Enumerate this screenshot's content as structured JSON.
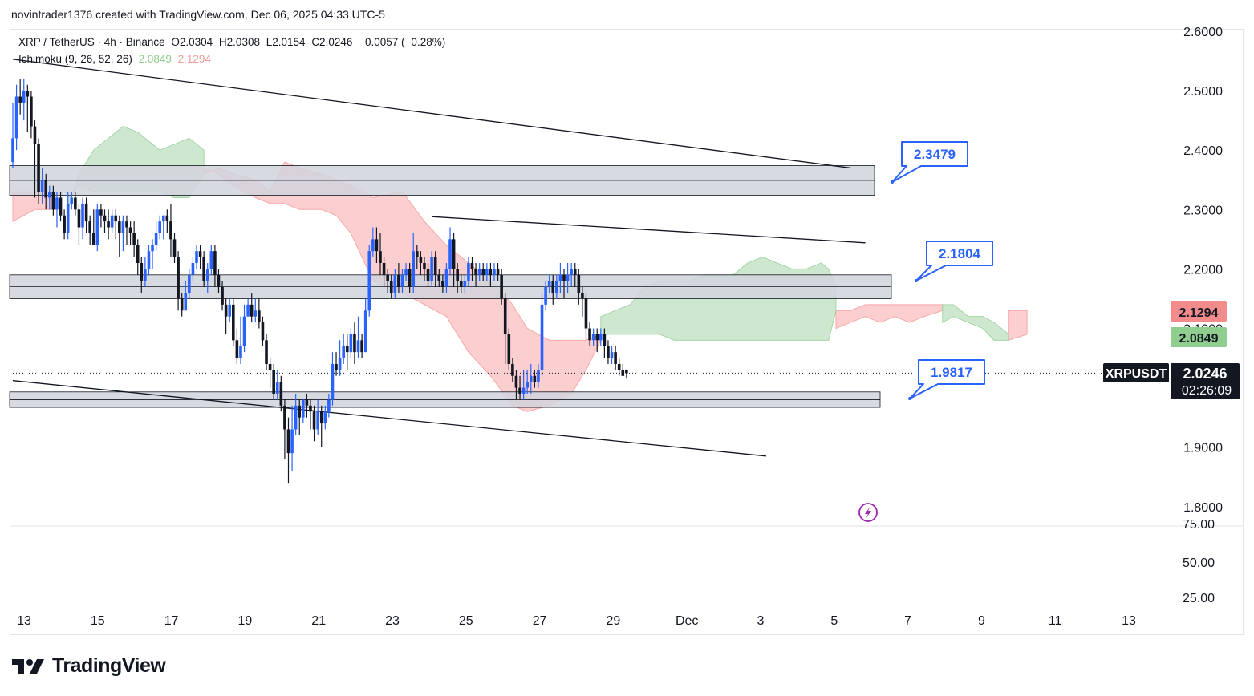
{
  "header": {
    "attribution": "novintrader1376 created with TradingView.com, Dec 06, 2025 04:33 UTC-5"
  },
  "legend": {
    "symbol": "XRP / TetherUS · 4h · Binance",
    "open": "O2.0304",
    "high": "H2.0308",
    "low": "L2.0154",
    "close": "C2.0246",
    "change": "−0.0057 (−0.28%)",
    "indicator": "Ichimoku (9, 26, 52, 26)",
    "indicator_v1": "2.0849",
    "indicator_v2": "2.1294"
  },
  "colors": {
    "up": "#2962ff",
    "down": "#131722",
    "cloud_green": "#a5d6a7",
    "cloud_red": "#f7a8a8",
    "zone": "#d1d4dc",
    "callout": "#2962ff",
    "badge_red": "#f28b8b",
    "badge_green": "#8fce8f"
  },
  "icons": {
    "replay": "lightning-icon",
    "logo": "tradingview-logo-icon"
  },
  "chart_data": {
    "type": "candlestick",
    "symbol": "XRPUSDT",
    "timeframe": "4h",
    "ylim": [
      1.75,
      2.61
    ],
    "y_ticks": [
      "2.6000",
      "2.5000",
      "2.4000",
      "2.3000",
      "2.2000",
      "2.1000",
      "1.9000",
      "1.8000"
    ],
    "x_ticks": [
      "13",
      "15",
      "17",
      "19",
      "21",
      "23",
      "25",
      "27",
      "29",
      "Dec",
      "3",
      "5",
      "7",
      "9",
      "11",
      "13"
    ],
    "lower_pane_ticks": [
      "75.00",
      "50.00",
      "25.00"
    ],
    "last_price": "2.0246",
    "countdown": "02:26:09",
    "symbol_label": "XRPUSDT",
    "ichimoku_badges": [
      "2.1294",
      "2.0849"
    ],
    "price_callouts": [
      "2.3479",
      "2.1804",
      "1.9817"
    ],
    "zones": [
      {
        "name": "resistance-zone-upper",
        "from": 2.324,
        "to": 2.374
      },
      {
        "name": "resistance-zone-middle",
        "from": 2.15,
        "to": 2.19
      },
      {
        "name": "support-zone",
        "from": 1.967,
        "to": 1.993
      }
    ],
    "trendlines": [
      {
        "name": "upper-descending-trendline",
        "from": [
          0,
          2.553
        ],
        "to": [
          228,
          2.37
        ]
      },
      {
        "name": "range-top-trendline",
        "from": [
          114,
          2.288
        ],
        "to": [
          232,
          2.244
        ]
      },
      {
        "name": "lower-descending-trendline",
        "from": [
          0,
          2.012
        ],
        "to": [
          205,
          1.885
        ]
      }
    ],
    "cloud_green": [
      [
        15,
        2.3,
        2.32
      ],
      [
        18,
        2.36,
        2.34
      ],
      [
        22,
        2.4,
        2.33
      ],
      [
        26,
        2.42,
        2.33
      ],
      [
        30,
        2.44,
        2.33
      ],
      [
        34,
        2.43,
        2.33
      ],
      [
        38,
        2.41,
        2.33
      ],
      [
        40,
        2.4,
        2.33
      ],
      [
        44,
        2.41,
        2.32
      ],
      [
        48,
        2.42,
        2.32
      ],
      [
        52,
        2.4,
        2.36
      ],
      [
        160,
        2.12,
        2.09
      ],
      [
        164,
        2.13,
        2.09
      ],
      [
        168,
        2.14,
        2.09
      ],
      [
        172,
        2.17,
        2.09
      ],
      [
        176,
        2.18,
        2.09
      ],
      [
        180,
        2.18,
        2.08
      ],
      [
        184,
        2.18,
        2.08
      ],
      [
        188,
        2.19,
        2.08
      ],
      [
        192,
        2.19,
        2.08
      ],
      [
        196,
        2.19,
        2.08
      ],
      [
        200,
        2.21,
        2.08
      ],
      [
        204,
        2.22,
        2.08
      ],
      [
        208,
        2.21,
        2.08
      ],
      [
        212,
        2.2,
        2.08
      ],
      [
        216,
        2.2,
        2.08
      ],
      [
        220,
        2.21,
        2.08
      ],
      [
        222,
        2.2,
        2.08
      ],
      [
        224,
        2.17,
        2.13
      ],
      [
        253,
        2.14,
        2.11
      ],
      [
        256,
        2.14,
        2.12
      ],
      [
        260,
        2.12,
        2.11
      ],
      [
        264,
        2.12,
        2.1
      ],
      [
        267,
        2.11,
        2.08
      ],
      [
        271,
        2.09,
        2.08
      ]
    ],
    "cloud_red": [
      [
        0,
        2.28,
        2.33
      ],
      [
        6,
        2.3,
        2.33
      ],
      [
        12,
        2.3,
        2.33
      ],
      [
        52,
        2.36,
        2.37
      ],
      [
        56,
        2.37,
        2.36
      ],
      [
        60,
        2.36,
        2.34
      ],
      [
        66,
        2.35,
        2.32
      ],
      [
        70,
        2.33,
        2.31
      ],
      [
        74,
        2.38,
        2.31
      ],
      [
        78,
        2.37,
        2.3
      ],
      [
        84,
        2.36,
        2.3
      ],
      [
        88,
        2.35,
        2.29
      ],
      [
        92,
        2.34,
        2.26
      ],
      [
        98,
        2.32,
        2.18
      ],
      [
        106,
        2.33,
        2.16
      ],
      [
        112,
        2.28,
        2.14
      ],
      [
        118,
        2.24,
        2.12
      ],
      [
        124,
        2.21,
        2.06
      ],
      [
        130,
        2.18,
        2.02
      ],
      [
        136,
        2.14,
        1.97
      ],
      [
        140,
        2.1,
        1.96
      ],
      [
        146,
        2.08,
        1.97
      ],
      [
        152,
        2.08,
        1.99
      ],
      [
        156,
        2.08,
        2.03
      ],
      [
        160,
        2.09,
        2.08
      ],
      [
        224,
        2.1,
        2.13
      ],
      [
        228,
        2.11,
        2.13
      ],
      [
        232,
        2.12,
        2.14
      ],
      [
        236,
        2.11,
        2.14
      ],
      [
        240,
        2.12,
        2.14
      ],
      [
        244,
        2.11,
        2.14
      ],
      [
        248,
        2.12,
        2.14
      ],
      [
        253,
        2.13,
        2.14
      ],
      [
        271,
        2.08,
        2.13
      ],
      [
        276,
        2.09,
        2.13
      ]
    ],
    "candles": [
      [
        2.38,
        2.42,
        2.48,
        2.37
      ],
      [
        2.42,
        2.49,
        2.51,
        2.4
      ],
      [
        2.49,
        2.48,
        2.52,
        2.46
      ],
      [
        2.48,
        2.5,
        2.52,
        2.45
      ],
      [
        2.5,
        2.49,
        2.51,
        2.43
      ],
      [
        2.49,
        2.44,
        2.5,
        2.42
      ],
      [
        2.44,
        2.41,
        2.45,
        2.32
      ],
      [
        2.41,
        2.33,
        2.42,
        2.31
      ],
      [
        2.33,
        2.35,
        2.37,
        2.31
      ],
      [
        2.35,
        2.32,
        2.36,
        2.3
      ],
      [
        2.32,
        2.33,
        2.34,
        2.3
      ],
      [
        2.33,
        2.3,
        2.34,
        2.29
      ],
      [
        2.3,
        2.32,
        2.33,
        2.27
      ],
      [
        2.32,
        2.29,
        2.33,
        2.28
      ],
      [
        2.29,
        2.26,
        2.3,
        2.25
      ],
      [
        2.26,
        2.31,
        2.33,
        2.25
      ],
      [
        2.31,
        2.32,
        2.33,
        2.3
      ],
      [
        2.32,
        2.3,
        2.33,
        2.29
      ],
      [
        2.3,
        2.27,
        2.31,
        2.24
      ],
      [
        2.27,
        2.31,
        2.32,
        2.25
      ],
      [
        2.31,
        2.28,
        2.32,
        2.26
      ],
      [
        2.28,
        2.26,
        2.29,
        2.24
      ],
      [
        2.26,
        2.24,
        2.3,
        2.25
      ],
      [
        2.24,
        2.3,
        2.31,
        2.23
      ],
      [
        2.3,
        2.29,
        2.31,
        2.27
      ],
      [
        2.29,
        2.28,
        2.3,
        2.26
      ],
      [
        2.28,
        2.27,
        2.3,
        2.25
      ],
      [
        2.27,
        2.29,
        2.3,
        2.26
      ],
      [
        2.29,
        2.28,
        2.3,
        2.25
      ],
      [
        2.28,
        2.26,
        2.29,
        2.22
      ],
      [
        2.26,
        2.28,
        2.29,
        2.23
      ],
      [
        2.28,
        2.27,
        2.29,
        2.24
      ],
      [
        2.27,
        2.26,
        2.28,
        2.24
      ],
      [
        2.26,
        2.24,
        2.28,
        2.22
      ],
      [
        2.24,
        2.21,
        2.25,
        2.19
      ],
      [
        2.21,
        2.18,
        2.22,
        2.16
      ],
      [
        2.18,
        2.2,
        2.22,
        2.17
      ],
      [
        2.2,
        2.23,
        2.24,
        2.19
      ],
      [
        2.23,
        2.24,
        2.25,
        2.2
      ],
      [
        2.24,
        2.26,
        2.28,
        2.23
      ],
      [
        2.26,
        2.28,
        2.29,
        2.25
      ],
      [
        2.28,
        2.29,
        2.29,
        2.25
      ],
      [
        2.29,
        2.28,
        2.3,
        2.26
      ],
      [
        2.28,
        2.25,
        2.31,
        2.22
      ],
      [
        2.25,
        2.22,
        2.26,
        2.21
      ],
      [
        2.22,
        2.15,
        2.23,
        2.13
      ],
      [
        2.15,
        2.13,
        2.16,
        2.12
      ],
      [
        2.13,
        2.16,
        2.18,
        2.13
      ],
      [
        2.16,
        2.19,
        2.2,
        2.15
      ],
      [
        2.19,
        2.21,
        2.22,
        2.18
      ],
      [
        2.21,
        2.23,
        2.24,
        2.2
      ],
      [
        2.23,
        2.22,
        2.24,
        2.2
      ],
      [
        2.22,
        2.18,
        2.23,
        2.17
      ],
      [
        2.18,
        2.2,
        2.21,
        2.16
      ],
      [
        2.2,
        2.23,
        2.24,
        2.19
      ],
      [
        2.23,
        2.19,
        2.24,
        2.17
      ],
      [
        2.19,
        2.17,
        2.2,
        2.16
      ],
      [
        2.17,
        2.14,
        2.18,
        2.13
      ],
      [
        2.14,
        2.12,
        2.15,
        2.09
      ],
      [
        2.12,
        2.14,
        2.15,
        2.11
      ],
      [
        2.14,
        2.08,
        2.15,
        2.07
      ],
      [
        2.08,
        2.05,
        2.1,
        2.04
      ],
      [
        2.05,
        2.07,
        2.12,
        2.04
      ],
      [
        2.07,
        2.12,
        2.14,
        2.06
      ],
      [
        2.12,
        2.14,
        2.15,
        2.12
      ],
      [
        2.14,
        2.12,
        2.16,
        2.11
      ],
      [
        2.12,
        2.13,
        2.15,
        2.11
      ],
      [
        2.13,
        2.11,
        2.15,
        2.1
      ],
      [
        2.11,
        2.08,
        2.12,
        2.07
      ],
      [
        2.08,
        2.04,
        2.09,
        2.03
      ],
      [
        2.04,
        2.03,
        2.05,
        2.0
      ],
      [
        2.03,
        1.99,
        2.04,
        1.98
      ],
      [
        1.99,
        2.01,
        2.03,
        1.98
      ],
      [
        2.01,
        1.97,
        2.02,
        1.96
      ],
      [
        1.97,
        1.93,
        1.98,
        1.88
      ],
      [
        1.93,
        1.89,
        1.95,
        1.84
      ],
      [
        1.89,
        1.93,
        1.97,
        1.86
      ],
      [
        1.93,
        1.97,
        1.99,
        1.92
      ],
      [
        1.97,
        1.95,
        1.98,
        1.92
      ],
      [
        1.95,
        1.98,
        1.98,
        1.94
      ],
      [
        1.98,
        1.97,
        1.99,
        1.95
      ],
      [
        1.97,
        1.96,
        1.98,
        1.93
      ],
      [
        1.96,
        1.93,
        1.97,
        1.91
      ],
      [
        1.93,
        1.96,
        1.98,
        1.92
      ],
      [
        1.96,
        1.94,
        1.97,
        1.9
      ],
      [
        1.94,
        1.96,
        1.97,
        1.93
      ],
      [
        1.96,
        1.98,
        1.99,
        1.95
      ],
      [
        1.98,
        2.04,
        2.06,
        1.97
      ],
      [
        2.04,
        2.03,
        2.06,
        2.02
      ],
      [
        2.03,
        2.05,
        2.08,
        2.02
      ],
      [
        2.05,
        2.07,
        2.09,
        2.04
      ],
      [
        2.07,
        2.06,
        2.09,
        2.03
      ],
      [
        2.06,
        2.09,
        2.1,
        2.05
      ],
      [
        2.09,
        2.06,
        2.11,
        2.04
      ],
      [
        2.06,
        2.08,
        2.12,
        2.05
      ],
      [
        2.08,
        2.06,
        2.09,
        2.05
      ],
      [
        2.06,
        2.13,
        2.15,
        2.06
      ],
      [
        2.13,
        2.23,
        2.24,
        2.12
      ],
      [
        2.23,
        2.25,
        2.27,
        2.22
      ],
      [
        2.25,
        2.23,
        2.27,
        2.21
      ],
      [
        2.23,
        2.21,
        2.26,
        2.19
      ],
      [
        2.21,
        2.19,
        2.22,
        2.17
      ],
      [
        2.19,
        2.18,
        2.2,
        2.16
      ],
      [
        2.18,
        2.16,
        2.19,
        2.15
      ],
      [
        2.16,
        2.19,
        2.2,
        2.15
      ],
      [
        2.19,
        2.17,
        2.21,
        2.16
      ],
      [
        2.17,
        2.19,
        2.2,
        2.16
      ],
      [
        2.19,
        2.2,
        2.21,
        2.18
      ],
      [
        2.2,
        2.17,
        2.21,
        2.16
      ],
      [
        2.17,
        2.23,
        2.26,
        2.16
      ],
      [
        2.23,
        2.22,
        2.24,
        2.2
      ],
      [
        2.22,
        2.21,
        2.23,
        2.19
      ],
      [
        2.21,
        2.2,
        2.22,
        2.18
      ],
      [
        2.2,
        2.18,
        2.21,
        2.17
      ],
      [
        2.18,
        2.22,
        2.23,
        2.17
      ],
      [
        2.22,
        2.19,
        2.23,
        2.17
      ],
      [
        2.19,
        2.18,
        2.2,
        2.17
      ],
      [
        2.18,
        2.17,
        2.19,
        2.16
      ],
      [
        2.17,
        2.2,
        2.21,
        2.16
      ],
      [
        2.2,
        2.25,
        2.27,
        2.19
      ],
      [
        2.25,
        2.2,
        2.26,
        2.17
      ],
      [
        2.2,
        2.18,
        2.21,
        2.16
      ],
      [
        2.18,
        2.17,
        2.19,
        2.16
      ],
      [
        2.17,
        2.18,
        2.19,
        2.16
      ],
      [
        2.18,
        2.21,
        2.22,
        2.17
      ],
      [
        2.21,
        2.2,
        2.22,
        2.18
      ],
      [
        2.2,
        2.19,
        2.21,
        2.17
      ],
      [
        2.19,
        2.2,
        2.21,
        2.18
      ],
      [
        2.2,
        2.19,
        2.21,
        2.18
      ],
      [
        2.19,
        2.2,
        2.21,
        2.18
      ],
      [
        2.2,
        2.19,
        2.21,
        2.17
      ],
      [
        2.19,
        2.2,
        2.21,
        2.18
      ],
      [
        2.2,
        2.19,
        2.21,
        2.18
      ],
      [
        2.19,
        2.15,
        2.2,
        2.14
      ],
      [
        2.15,
        2.09,
        2.16,
        2.04
      ],
      [
        2.09,
        2.04,
        2.1,
        2.03
      ],
      [
        2.04,
        2.02,
        2.05,
        2.01
      ],
      [
        2.02,
        2.0,
        2.03,
        1.98
      ],
      [
        2.0,
        1.99,
        2.02,
        1.98
      ],
      [
        1.99,
        2.0,
        2.03,
        1.98
      ],
      [
        2.0,
        2.01,
        2.03,
        1.99
      ],
      [
        2.01,
        2.02,
        2.04,
        1.99
      ],
      [
        2.02,
        2.01,
        2.03,
        2.0
      ],
      [
        2.01,
        2.03,
        2.04,
        2.0
      ],
      [
        2.03,
        2.14,
        2.16,
        2.02
      ],
      [
        2.14,
        2.17,
        2.18,
        2.13
      ],
      [
        2.17,
        2.18,
        2.19,
        2.16
      ],
      [
        2.18,
        2.16,
        2.19,
        2.14
      ],
      [
        2.16,
        2.18,
        2.19,
        2.15
      ],
      [
        2.18,
        2.19,
        2.21,
        2.16
      ],
      [
        2.19,
        2.18,
        2.2,
        2.15
      ],
      [
        2.18,
        2.19,
        2.21,
        2.16
      ],
      [
        2.19,
        2.2,
        2.21,
        2.17
      ],
      [
        2.2,
        2.19,
        2.21,
        2.17
      ],
      [
        2.19,
        2.16,
        2.2,
        2.14
      ],
      [
        2.16,
        2.15,
        2.17,
        2.12
      ],
      [
        2.15,
        2.1,
        2.16,
        2.08
      ],
      [
        2.1,
        2.08,
        2.11,
        2.07
      ],
      [
        2.08,
        2.09,
        2.1,
        2.07
      ],
      [
        2.09,
        2.08,
        2.1,
        2.06
      ],
      [
        2.08,
        2.09,
        2.1,
        2.07
      ],
      [
        2.09,
        2.07,
        2.1,
        2.05
      ],
      [
        2.07,
        2.05,
        2.08,
        2.04
      ],
      [
        2.05,
        2.06,
        2.07,
        2.04
      ],
      [
        2.06,
        2.04,
        2.07,
        2.03
      ],
      [
        2.04,
        2.03,
        2.05,
        2.02
      ],
      [
        2.03,
        2.02,
        2.04,
        2.02
      ],
      [
        2.0304,
        2.0246,
        2.0308,
        2.0154
      ]
    ]
  }
}
